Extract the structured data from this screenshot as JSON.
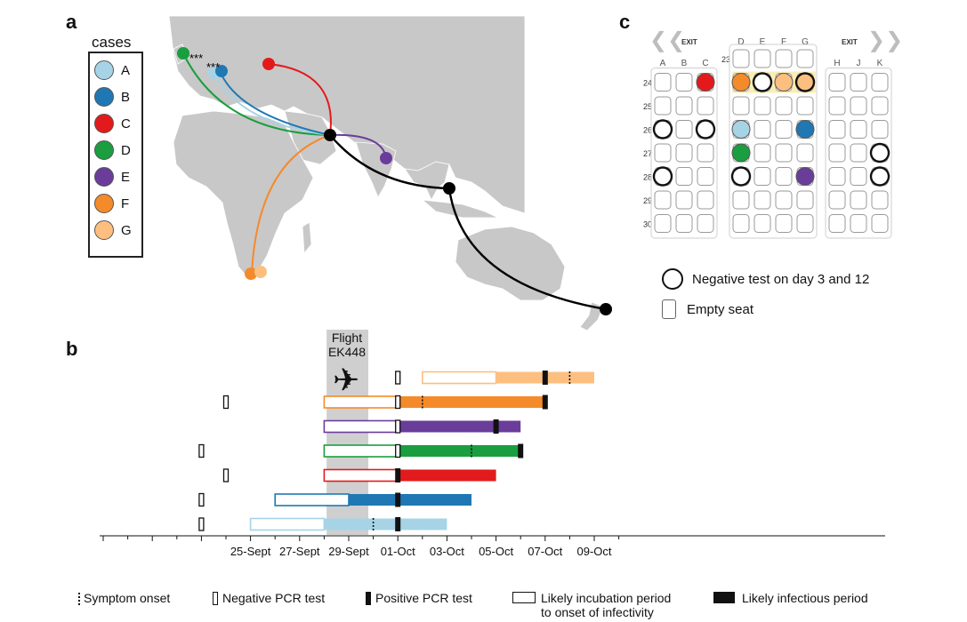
{
  "panels": {
    "a": "a",
    "b": "b",
    "c": "c"
  },
  "legend": {
    "title": "cases",
    "cases": [
      {
        "label": "A",
        "color": "#a7d3e6"
      },
      {
        "label": "B",
        "color": "#1f78b4"
      },
      {
        "label": "C",
        "color": "#e31a1c"
      },
      {
        "label": "D",
        "color": "#1a9e3f"
      },
      {
        "label": "E",
        "color": "#6a3d9a"
      },
      {
        "label": "F",
        "color": "#f58a2a"
      },
      {
        "label": "G",
        "color": "#fdbf80"
      }
    ]
  },
  "map": {
    "hub_color": "#000000",
    "land_color": "#c8c8c8",
    "stars": "***",
    "origin_case": "",
    "destinations": [
      "A",
      "B",
      "C",
      "D",
      "E",
      "F",
      "G"
    ]
  },
  "seatmap": {
    "exit_left": "EXIT",
    "exit_right": "EXIT",
    "columns_left": [
      "A",
      "B",
      "C"
    ],
    "columns_mid": [
      "D",
      "E",
      "F",
      "G"
    ],
    "columns_right": [
      "H",
      "J",
      "K"
    ],
    "rows": [
      "23",
      "24",
      "25",
      "26",
      "27",
      "28",
      "29",
      "30"
    ],
    "occupied": [
      {
        "row": "24",
        "seat": "C",
        "case": "C"
      },
      {
        "row": "24",
        "seat": "D",
        "case": "F"
      },
      {
        "row": "24",
        "seat": "E",
        "case": "neg"
      },
      {
        "row": "24",
        "seat": "F",
        "case": "G"
      },
      {
        "row": "24",
        "seat": "G",
        "case": "neg-G"
      },
      {
        "row": "26",
        "seat": "A",
        "case": "neg"
      },
      {
        "row": "26",
        "seat": "C",
        "case": "neg"
      },
      {
        "row": "26",
        "seat": "D",
        "case": "A"
      },
      {
        "row": "26",
        "seat": "G",
        "case": "B"
      },
      {
        "row": "27",
        "seat": "D",
        "case": "D"
      },
      {
        "row": "27",
        "seat": "K",
        "case": "neg"
      },
      {
        "row": "28",
        "seat": "A",
        "case": "neg"
      },
      {
        "row": "28",
        "seat": "D",
        "case": "neg"
      },
      {
        "row": "28",
        "seat": "G",
        "case": "E"
      },
      {
        "row": "28",
        "seat": "K",
        "case": "neg"
      }
    ],
    "legend_negative": "Negative test on day 3 and 12",
    "legend_empty": "Empty seat"
  },
  "timeline": {
    "flight_label_1": "Flight",
    "flight_label_2": "EK448",
    "x_ticks": [
      "25-Sept",
      "27-Sept",
      "29-Sept",
      "01-Oct",
      "03-Oct",
      "05-Oct",
      "07-Oct",
      "09-Oct"
    ],
    "legend": {
      "symptom": "Symptom onset",
      "neg_pcr": "Negative PCR test",
      "pos_pcr": "Positive PCR test",
      "incubation_1": "Likely incubation period",
      "incubation_2": "to onset of infectivity",
      "infectious": "Likely infectious period"
    },
    "cases": [
      {
        "case": "G",
        "incub_start": 3.0,
        "incub_end": 6.0,
        "inf_end": 10.0,
        "neg": [
          2.0
        ],
        "pos": [
          8.0
        ],
        "symptom": 9.0
      },
      {
        "case": "F",
        "incub_start": -1.0,
        "incub_end": 2.0,
        "inf_end": 8.0,
        "neg": [
          -5.0,
          2.0
        ],
        "pos": [
          8.0
        ],
        "symptom": 3.0
      },
      {
        "case": "E",
        "incub_start": -1.0,
        "incub_end": 2.0,
        "inf_end": 7.0,
        "neg": [
          2.0
        ],
        "pos": [
          6.0
        ],
        "symptom": null
      },
      {
        "case": "D",
        "incub_start": -1.0,
        "incub_end": 2.0,
        "inf_end": 7.0,
        "neg": [
          -6.0,
          2.0
        ],
        "pos": [
          7.0
        ],
        "symptom": 5.0
      },
      {
        "case": "C",
        "incub_start": -1.0,
        "incub_end": 2.0,
        "inf_end": 6.0,
        "neg": [
          -5.0
        ],
        "pos": [
          2.0
        ],
        "symptom": null
      },
      {
        "case": "B",
        "incub_start": -3.0,
        "incub_end": 0.0,
        "inf_end": 5.0,
        "neg": [
          -6.0
        ],
        "pos": [
          2.0
        ],
        "symptom": 2.0
      },
      {
        "case": "A",
        "incub_start": -4.0,
        "incub_end": -1.0,
        "inf_end": 4.0,
        "neg": [
          -6.0
        ],
        "pos": [
          2.0
        ],
        "symptom": 1.0
      }
    ]
  }
}
